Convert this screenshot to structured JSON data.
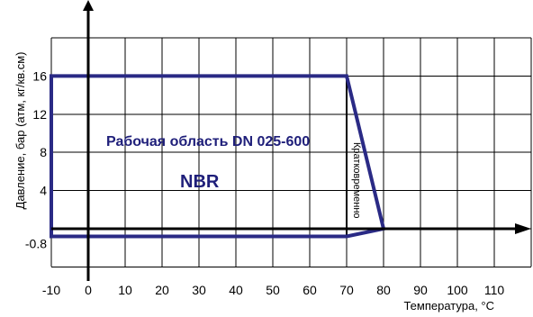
{
  "chart_data": {
    "type": "area",
    "xlabel": "Температура, °С",
    "ylabel": "Давление, бар (атм, кг/кв.см)",
    "x_ticks": [
      "-10",
      "0",
      "10",
      "20",
      "30",
      "40",
      "50",
      "60",
      "70",
      "80",
      "90",
      "100",
      "110"
    ],
    "y_ticks": [
      "16",
      "12",
      "8",
      "4",
      "-0.8"
    ],
    "xlim": [
      -10,
      110
    ],
    "ylim": [
      -4,
      20
    ],
    "grid": true,
    "region": {
      "name": "NBR",
      "color": "#2a2a85",
      "points": [
        {
          "x": -10,
          "y": 16
        },
        {
          "x": 70,
          "y": 16
        },
        {
          "x": 80,
          "y": 0
        },
        {
          "x": 70,
          "y": -0.8
        },
        {
          "x": -10,
          "y": -0.8
        }
      ]
    },
    "short_term_boundary_x": 70,
    "annotations": {
      "working_area": "Рабочая область DN 025-600",
      "material": "NBR",
      "short_term": "Кратковременно"
    }
  }
}
